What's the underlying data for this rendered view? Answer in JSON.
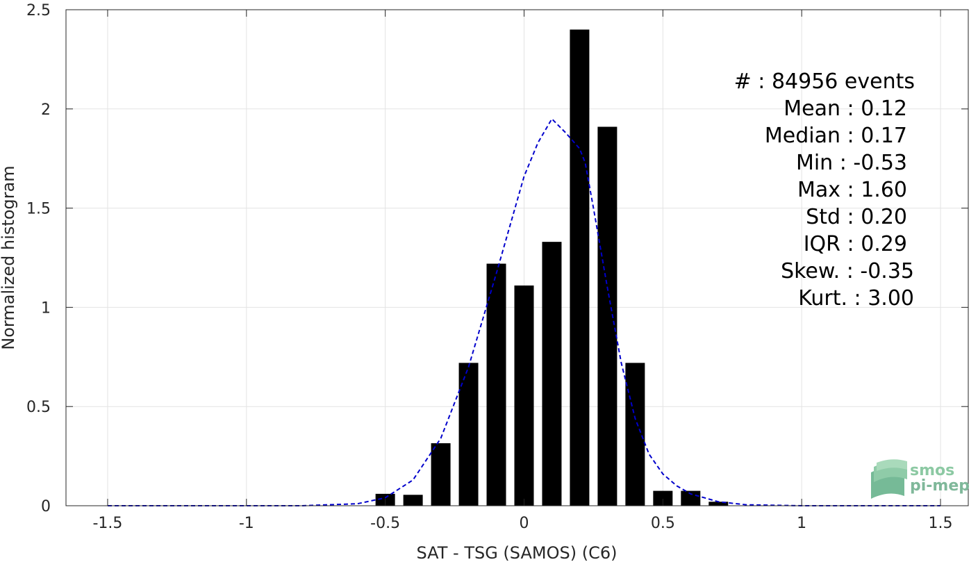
{
  "chart_data": {
    "type": "bar",
    "xlabel": "SAT - TSG (SAMOS) (C6)",
    "ylabel": "Normalized histogram",
    "xlim": [
      -1.65,
      1.6
    ],
    "ylim": [
      0,
      2.5
    ],
    "xticks": [
      -1.5,
      -1,
      -0.5,
      0,
      0.5,
      1,
      1.5
    ],
    "xtick_labels": [
      "-1.5",
      "-1",
      "-0.5",
      "0",
      "0.5",
      "1",
      "1.5"
    ],
    "yticks": [
      0,
      0.5,
      1,
      1.5,
      2,
      2.5
    ],
    "ytick_labels": [
      "0",
      "0.5",
      "1",
      "1.5",
      "2",
      "2.5"
    ],
    "grid": true,
    "bar_color": "#000000",
    "bar_width": 0.07,
    "bars": {
      "x": [
        -0.5,
        -0.4,
        -0.3,
        -0.2,
        -0.1,
        0.0,
        0.1,
        0.2,
        0.3,
        0.4,
        0.5,
        0.6,
        0.7
      ],
      "values": [
        0.06,
        0.055,
        0.315,
        0.72,
        1.22,
        1.11,
        1.33,
        2.4,
        1.91,
        0.72,
        0.075,
        0.075,
        0.02
      ]
    },
    "fit_curve": {
      "style": "dashed",
      "color": "#0000cc",
      "x": [
        -1.5,
        -0.8,
        -0.6,
        -0.5,
        -0.4,
        -0.3,
        -0.2,
        -0.1,
        0.0,
        0.05,
        0.1,
        0.15,
        0.2,
        0.22,
        0.25,
        0.3,
        0.35,
        0.4,
        0.45,
        0.5,
        0.55,
        0.6,
        0.65,
        0.7,
        0.8,
        1.0,
        1.5
      ],
      "y": [
        0.0,
        0.0,
        0.01,
        0.04,
        0.13,
        0.34,
        0.7,
        1.17,
        1.66,
        1.83,
        1.95,
        1.88,
        1.8,
        1.73,
        1.5,
        1.1,
        0.72,
        0.44,
        0.26,
        0.16,
        0.1,
        0.06,
        0.04,
        0.02,
        0.005,
        0.0,
        0.0
      ]
    },
    "annotation": [
      "#  : 84956 events",
      "Mean : 0.12",
      "Median : 0.17",
      "Min : -0.53",
      "Max : 1.60",
      "Std : 0.20",
      "IQR : 0.29",
      "Skew. : -0.35",
      "Kurt. : 3.00"
    ]
  },
  "logo": {
    "line1": "smos",
    "line2": "pi-mep",
    "colors": [
      "#9bd4b0",
      "#7cc39a",
      "#5faf86"
    ]
  }
}
